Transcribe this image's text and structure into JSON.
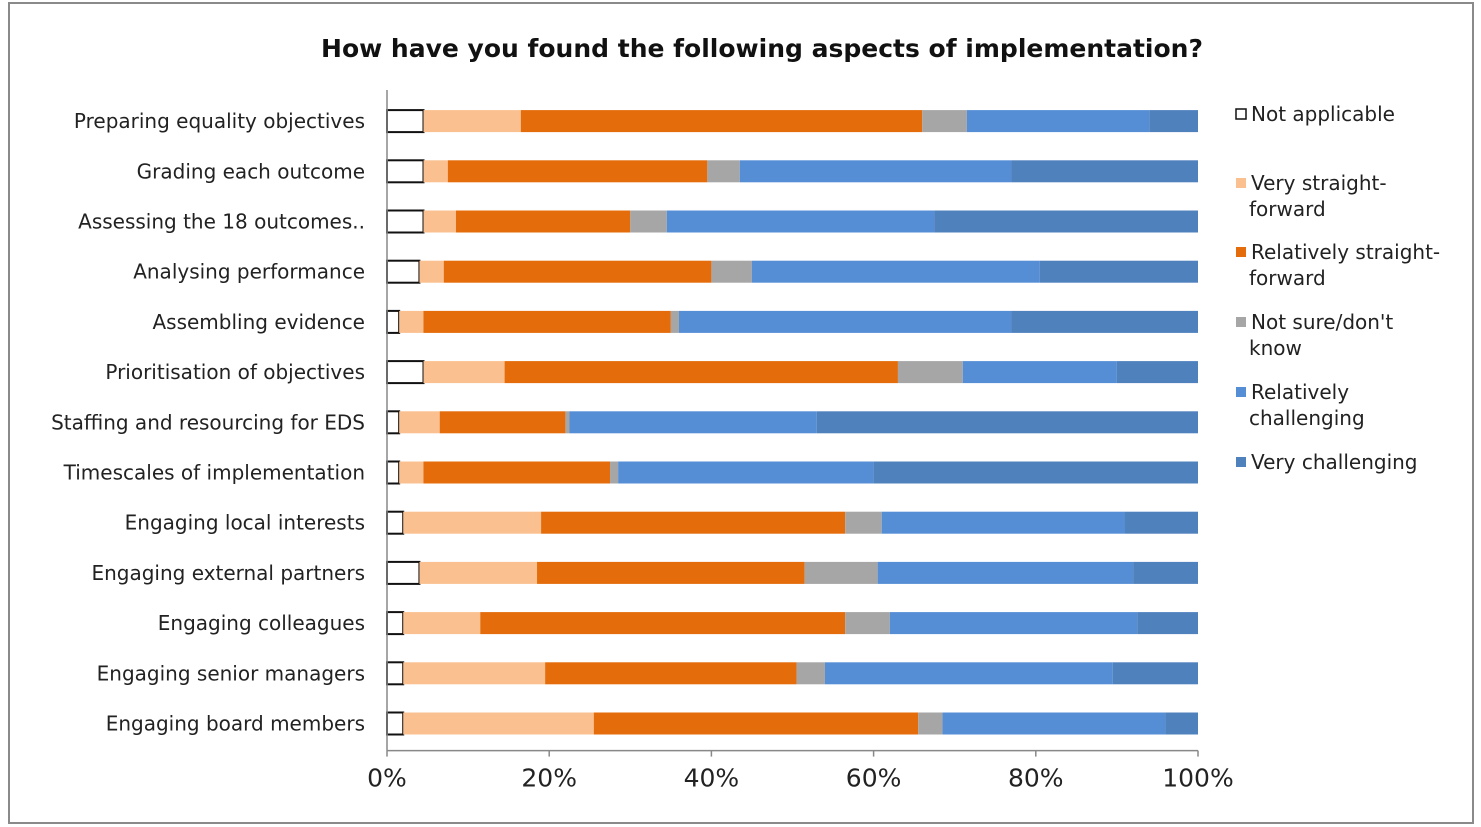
{
  "chart_data": {
    "type": "bar",
    "orientation": "horizontal",
    "stacked": "percent",
    "title": "How have you found the following aspects of implementation?",
    "categories": [
      "Preparing equality objectives",
      "Grading each outcome",
      "Assessing the 18 outcomes..",
      "Analysing performance",
      "Assembling evidence",
      "Prioritisation of objectives",
      "Staffing and resourcing for EDS",
      "Timescales of implementation",
      "Engaging local interests",
      "Engaging external partners",
      "Engaging colleagues",
      "Engaging senior managers",
      "Engaging board members"
    ],
    "series": [
      {
        "name": "Not applicable",
        "color": "#ffffff",
        "values": [
          4.5,
          4.5,
          4.5,
          4,
          1.5,
          4.5,
          1.5,
          1.5,
          2,
          4,
          2,
          2,
          2
        ]
      },
      {
        "name": "Very straight-forward",
        "color": "#fac090",
        "values": [
          12,
          3,
          4,
          3,
          3,
          10,
          5,
          3,
          17,
          14.5,
          9.5,
          17.5,
          23.5
        ]
      },
      {
        "name": "Relatively straight-forward",
        "color": "#e46c0a",
        "values": [
          49.5,
          32,
          21.5,
          33,
          30.5,
          48.5,
          15.5,
          23,
          37.5,
          33,
          45,
          31,
          40
        ]
      },
      {
        "name": "Not sure/don't know",
        "color": "#a6a6a6",
        "values": [
          5.5,
          4,
          4.5,
          5,
          1,
          8,
          0.5,
          1,
          4.5,
          9,
          5.5,
          3.5,
          3
        ]
      },
      {
        "name": "Relatively challenging",
        "color": "#558ed5",
        "values": [
          22.5,
          33.5,
          33,
          35.5,
          41,
          19,
          30.5,
          31.5,
          30,
          31.5,
          30.5,
          35.5,
          27.5
        ]
      },
      {
        "name": "Very challenging",
        "color": "#4f81bd",
        "values": [
          6,
          23,
          32.5,
          19.5,
          23,
          10,
          47,
          40,
          9,
          8,
          7.5,
          10.5,
          4
        ]
      }
    ],
    "xlim": [
      0,
      100
    ],
    "x_ticks": [
      "0%",
      "20%",
      "40%",
      "60%",
      "80%",
      "100%"
    ],
    "legend_position": "right",
    "grid": false
  }
}
